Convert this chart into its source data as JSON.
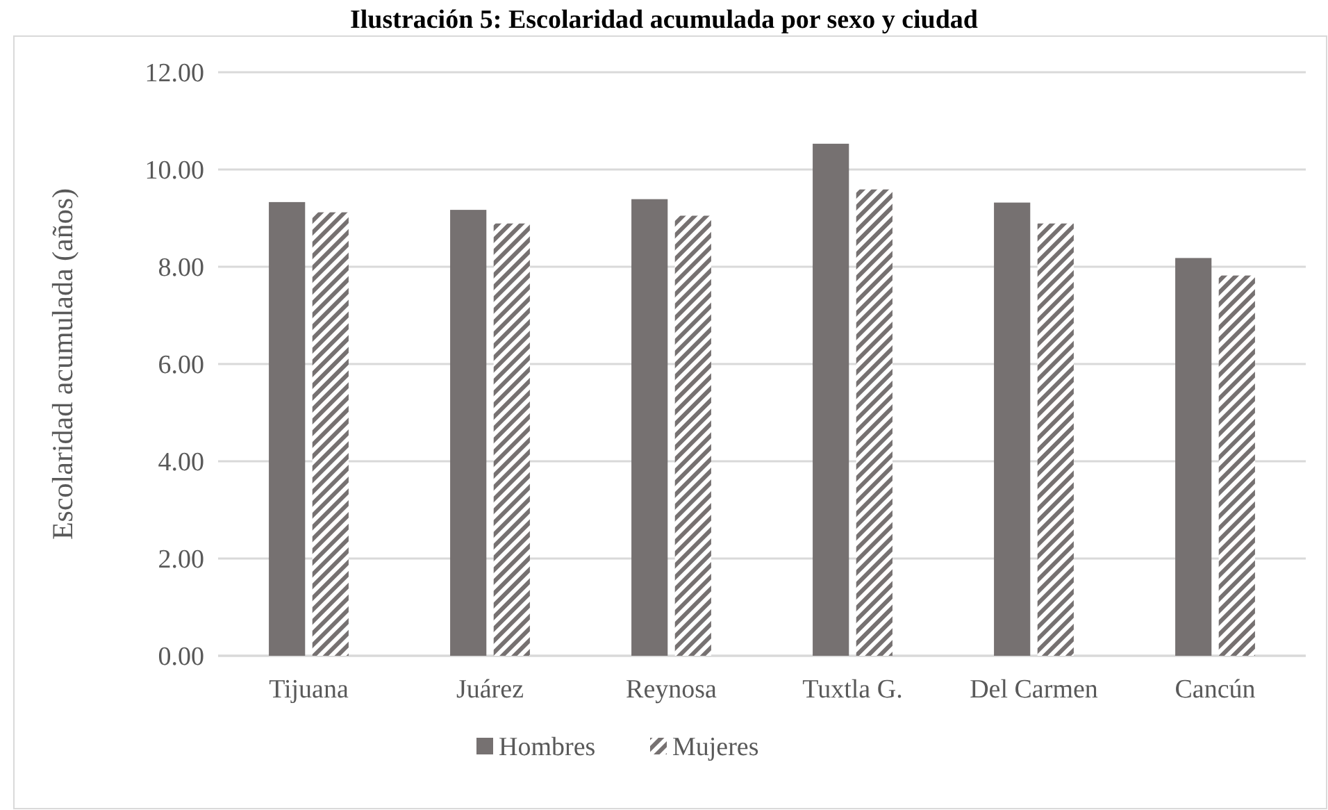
{
  "chart_data": {
    "type": "bar",
    "title": "Ilustración 5: Escolaridad acumulada por sexo y ciudad",
    "ylabel": "Escolaridad acumulada (años)",
    "categories": [
      "Tijuana",
      "Juárez",
      "Reynosa",
      "Tuxtla G.",
      "Del Carmen",
      "Cancún"
    ],
    "series": [
      {
        "name": "Hombres",
        "color": "#767171",
        "values": [
          9.33,
          9.17,
          9.39,
          10.53,
          9.32,
          8.18
        ]
      },
      {
        "name": "Mujeres",
        "color": "#767171",
        "values": [
          9.12,
          8.89,
          9.05,
          9.59,
          8.89,
          7.82
        ]
      }
    ],
    "ylim": [
      0,
      12
    ],
    "yticks": [
      {
        "value": 0,
        "label": "0.00"
      },
      {
        "value": 2,
        "label": "2.00"
      },
      {
        "value": 4,
        "label": "4.00"
      },
      {
        "value": 6,
        "label": "6.00"
      },
      {
        "value": 8,
        "label": "8.00"
      },
      {
        "value": 10,
        "label": "10.00"
      },
      {
        "value": 12,
        "label": "12.00"
      }
    ],
    "grid": "y",
    "legend": "bottom"
  }
}
